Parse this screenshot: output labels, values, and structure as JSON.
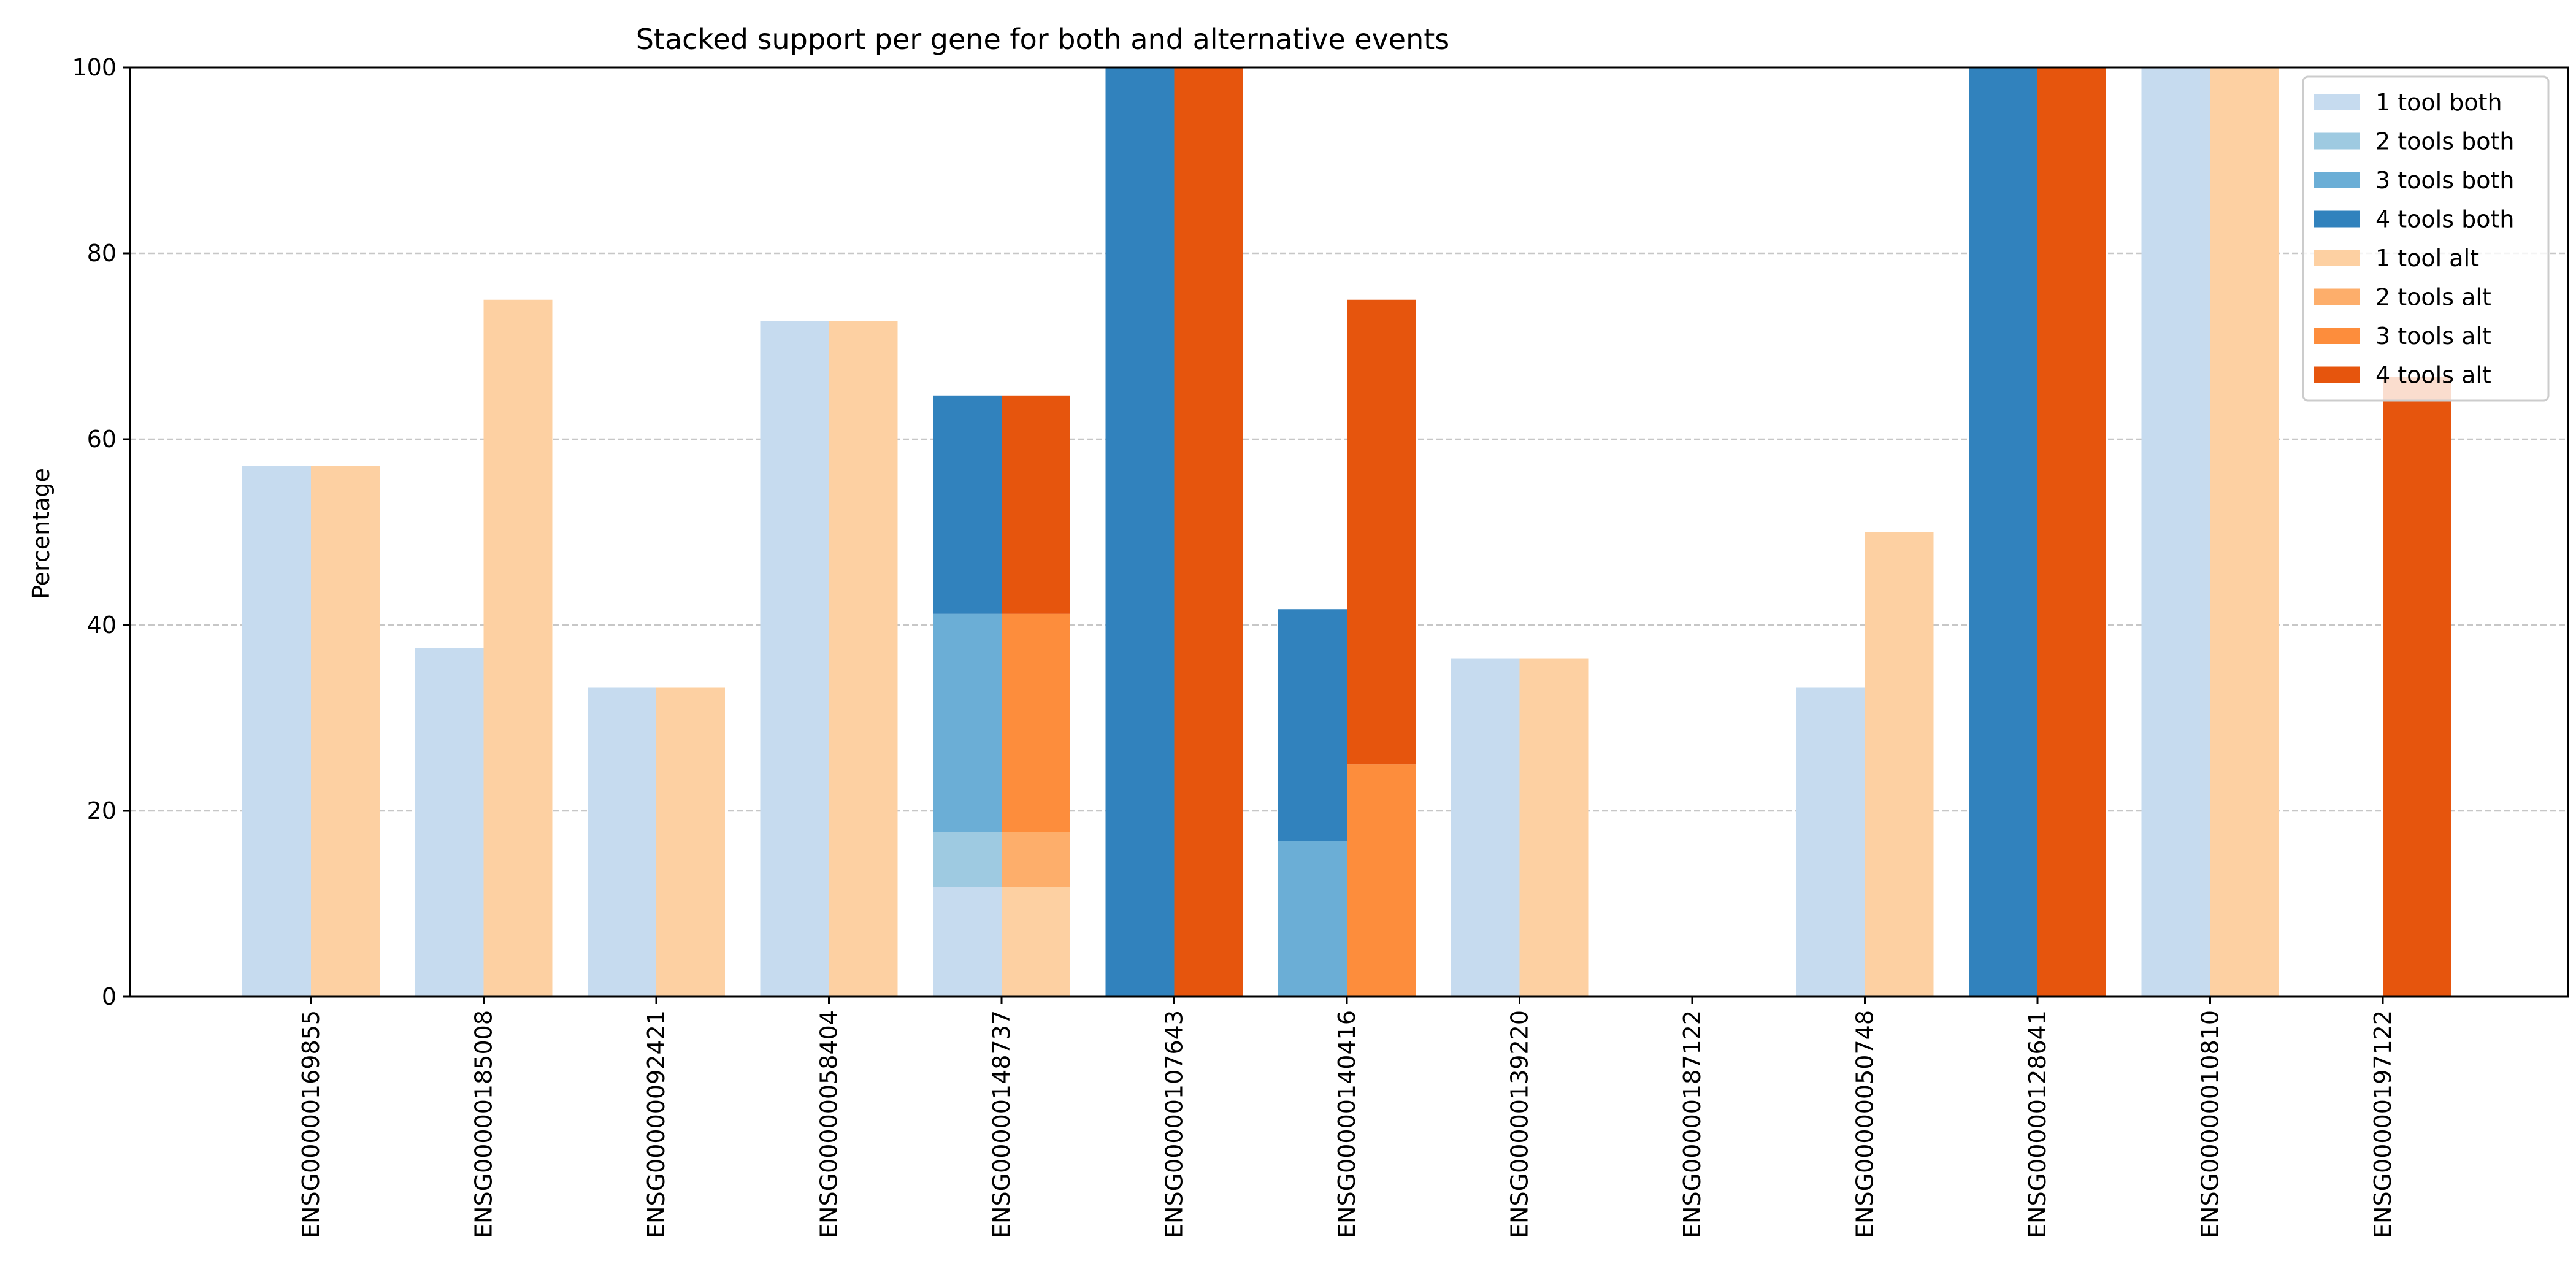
{
  "chart_data": {
    "type": "bar",
    "title": "Stacked support per gene for both and alternative events",
    "xlabel": "",
    "ylabel": "Percentage",
    "ylim": [
      0,
      100
    ],
    "yticks": [
      0,
      20,
      40,
      60,
      80,
      100
    ],
    "grid": "y-dashed",
    "legend_position": "upper-right",
    "categories": [
      "ENSG00000169855",
      "ENSG00000185008",
      "ENSG00000092421",
      "ENSG00000058404",
      "ENSG00000148737",
      "ENSG00000107643",
      "ENSG00000140416",
      "ENSG00000139220",
      "ENSG00000187122",
      "ENSG00000050748",
      "ENSG00000128641",
      "ENSG00000010810",
      "ENSG00000197122"
    ],
    "groups": [
      {
        "stack": "both",
        "series": [
          {
            "name": "1 tool both",
            "color": "#c6dbef",
            "values": [
              57.1,
              37.5,
              33.3,
              72.7,
              11.8,
              0,
              0,
              36.4,
              0,
              33.3,
              0,
              100,
              0
            ]
          },
          {
            "name": "2 tools both",
            "color": "#9ecae1",
            "values": [
              0,
              0,
              0,
              0,
              5.9,
              0,
              0,
              0,
              0,
              0,
              0,
              0,
              0
            ]
          },
          {
            "name": "3 tools both",
            "color": "#6baed6",
            "values": [
              0,
              0,
              0,
              0,
              23.5,
              0,
              16.7,
              0,
              0,
              0,
              0,
              0,
              0
            ]
          },
          {
            "name": "4 tools both",
            "color": "#3182bd",
            "values": [
              0,
              0,
              0,
              0,
              23.5,
              100,
              25.0,
              0,
              0,
              0,
              100,
              0,
              0
            ]
          }
        ]
      },
      {
        "stack": "alt",
        "series": [
          {
            "name": "1 tool alt",
            "color": "#fdd0a2",
            "values": [
              57.1,
              75.0,
              33.3,
              72.7,
              11.8,
              0,
              0,
              36.4,
              0,
              50.0,
              0,
              100,
              0
            ]
          },
          {
            "name": "2 tools alt",
            "color": "#fdae6b",
            "values": [
              0,
              0,
              0,
              0,
              5.9,
              0,
              0,
              0,
              0,
              0,
              0,
              0,
              0
            ]
          },
          {
            "name": "3 tools alt",
            "color": "#fd8d3c",
            "values": [
              0,
              0,
              0,
              0,
              23.5,
              0,
              25.0,
              0,
              0,
              0,
              0,
              0,
              0
            ]
          },
          {
            "name": "4 tools alt",
            "color": "#e6550d",
            "values": [
              0,
              0,
              0,
              0,
              23.5,
              100,
              50.0,
              0,
              0,
              0,
              100,
              0,
              66.7
            ]
          }
        ]
      }
    ]
  }
}
